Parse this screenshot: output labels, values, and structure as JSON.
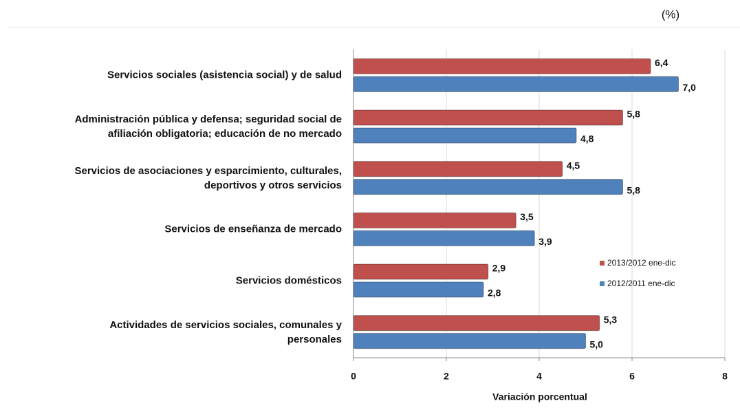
{
  "chart_data": {
    "type": "bar",
    "orientation": "horizontal",
    "annotation": "(%)",
    "xlabel": "Variación porcentual",
    "categories": [
      "Servicios sociales (asistencia  social) y de salud",
      "Administración pública y defensa;  seguridad social de\nafiliación obligatoria; educación de no mercado",
      "Servicios de asociaciones  y esparcimiento,  culturales,\ndeportivos y otros servicios",
      "Servicios de enseñanza de mercado",
      "Servicios domésticos",
      "Actividades de servicios sociales, comunales y\npersonales"
    ],
    "series": [
      {
        "name": "2013/2012 ene-dic",
        "color": "#c0504d",
        "values": [
          6.4,
          5.8,
          4.5,
          3.5,
          2.9,
          5.3
        ],
        "value_labels": [
          "6,4",
          "5,8",
          "4,5",
          "3,5",
          "2,9",
          "5,3"
        ]
      },
      {
        "name": "2012/2011 ene-dic",
        "color": "#4f81bd",
        "values": [
          7.0,
          4.8,
          5.8,
          3.9,
          2.8,
          5.0
        ],
        "value_labels": [
          "7,0",
          "4,8",
          "5,8",
          "3,9",
          "2,8",
          "5,0"
        ]
      }
    ],
    "xlim": [
      0,
      8
    ],
    "xticks": [
      0,
      2,
      4,
      6,
      8
    ],
    "grid": true
  }
}
